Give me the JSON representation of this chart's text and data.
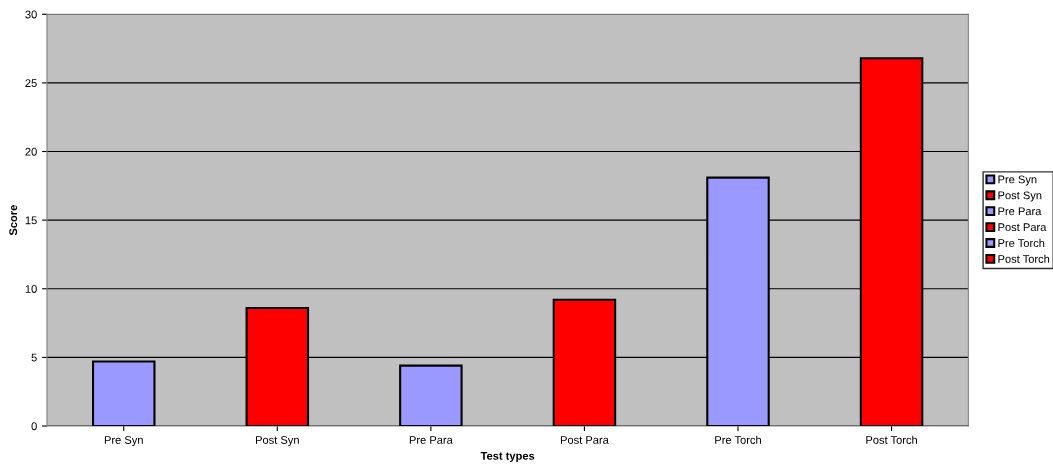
{
  "chart_data": {
    "type": "bar",
    "xlabel": "Test types",
    "ylabel": "Score",
    "categories": [
      "Pre Syn",
      "Post Syn",
      "Pre Para",
      "Post Para",
      "Pre Torch",
      "Post Torch"
    ],
    "series": [
      {
        "name": "Pre Syn",
        "color": "#9999ff",
        "values": [
          4.7,
          null,
          null,
          null,
          null,
          null
        ]
      },
      {
        "name": "Post Syn",
        "color": "#ff0000",
        "values": [
          null,
          8.6,
          null,
          null,
          null,
          null
        ]
      },
      {
        "name": "Pre Para",
        "color": "#9999ff",
        "values": [
          null,
          null,
          4.4,
          null,
          null,
          null
        ]
      },
      {
        "name": "Post Para",
        "color": "#ff0000",
        "values": [
          null,
          null,
          null,
          9.2,
          null,
          null
        ]
      },
      {
        "name": "Pre Torch",
        "color": "#9999ff",
        "values": [
          null,
          null,
          null,
          null,
          18.1,
          null
        ]
      },
      {
        "name": "Post Torch",
        "color": "#ff0000",
        "values": [
          null,
          null,
          null,
          null,
          null,
          26.8
        ]
      }
    ],
    "ylim": [
      0,
      30
    ],
    "yticks": [
      0,
      5,
      10,
      15,
      20,
      25,
      30
    ],
    "grid": "y",
    "legend": "right"
  }
}
